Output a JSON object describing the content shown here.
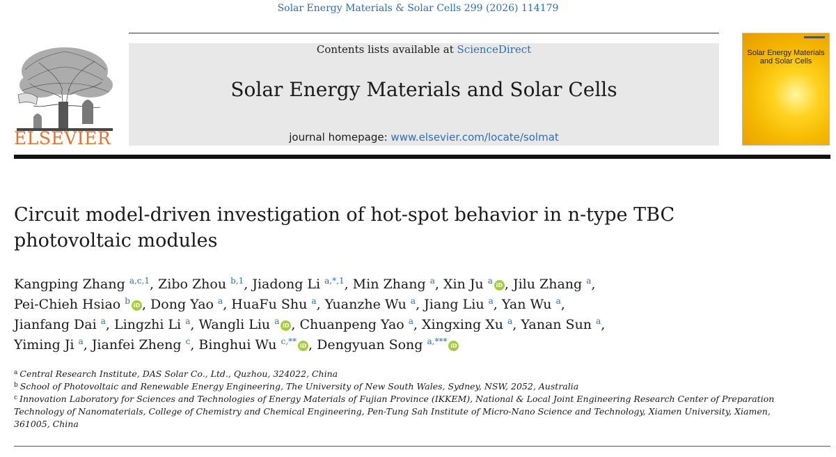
{
  "citation": "Solar Energy Materials & Solar Cells 299 (2026) 114179",
  "publisher": {
    "logo_text": "ELSEVIER"
  },
  "banner": {
    "contents_prefix": "Contents lists available at ",
    "contents_link": "ScienceDirect",
    "journal_name": "Solar Energy Materials and Solar Cells",
    "homepage_prefix": "journal homepage: ",
    "homepage_link": "www.elsevier.com/locate/solmat"
  },
  "cover": {
    "title": "Solar Energy Materials and Solar Cells"
  },
  "article": {
    "title_line1": "Circuit model-driven investigation of hot-spot behavior in n-type TBC",
    "title_line2": "photovoltaic modules"
  },
  "authors": [
    {
      "name": "Kangping Zhang",
      "sup": "a,c,1",
      "sep": ", ",
      "orcid": false
    },
    {
      "name": "Zibo Zhou",
      "sup": "b,1",
      "sep": ", ",
      "orcid": false
    },
    {
      "name": "Jiadong Li",
      "sup": "a,*,1",
      "sep": ", ",
      "orcid": false
    },
    {
      "name": "Min Zhang",
      "sup": "a",
      "sep": ", ",
      "orcid": false
    },
    {
      "name": "Xin Ju",
      "sup": "a",
      "sep": ", ",
      "orcid": true
    },
    {
      "name": "Jilu Zhang",
      "sup": "a",
      "sep": ",",
      "orcid": false
    },
    {
      "name": "Pei-Chieh Hsiao",
      "sup": "b",
      "sep": ", ",
      "orcid": true
    },
    {
      "name": "Dong Yao",
      "sup": "a",
      "sep": ", ",
      "orcid": false
    },
    {
      "name": "HuaFu Shu",
      "sup": "a",
      "sep": ", ",
      "orcid": false
    },
    {
      "name": "Yuanzhe Wu",
      "sup": "a",
      "sep": ", ",
      "orcid": false
    },
    {
      "name": "Jiang Liu",
      "sup": "a",
      "sep": ", ",
      "orcid": false
    },
    {
      "name": "Yan Wu",
      "sup": "a",
      "sep": ",",
      "orcid": false
    },
    {
      "name": "Jianfang Dai",
      "sup": "a",
      "sep": ", ",
      "orcid": false
    },
    {
      "name": "Lingzhi Li",
      "sup": "a",
      "sep": ", ",
      "orcid": false
    },
    {
      "name": "Wangli Liu",
      "sup": "a",
      "sep": ", ",
      "orcid": true
    },
    {
      "name": "Chuanpeng Yao",
      "sup": "a",
      "sep": ", ",
      "orcid": false
    },
    {
      "name": "Xingxing Xu",
      "sup": "a",
      "sep": ", ",
      "orcid": false
    },
    {
      "name": "Yanan Sun",
      "sup": "a",
      "sep": ",",
      "orcid": false
    },
    {
      "name": "Yiming Ji",
      "sup": "a",
      "sep": ", ",
      "orcid": false
    },
    {
      "name": "Jianfei Zheng",
      "sup": "c",
      "sep": ", ",
      "orcid": false
    },
    {
      "name": "Binghui Wu",
      "sup": "c,**",
      "sep": ", ",
      "orcid": true
    },
    {
      "name": "Dengyuan Song",
      "sup": "a,***",
      "sep": "",
      "orcid": true
    }
  ],
  "author_lines": [
    [
      0,
      6
    ],
    [
      6,
      12
    ],
    [
      12,
      18
    ],
    [
      18,
      22
    ]
  ],
  "orcid_label": "iD",
  "affiliations": [
    {
      "label": "a",
      "text": "Central Research Institute, DAS Solar Co., Ltd., Quzhou, 324022, China"
    },
    {
      "label": "b",
      "text": "School of Photovoltaic and Renewable Energy Engineering, The University of New South Wales, Sydney, NSW, 2052, Australia"
    },
    {
      "label": "c",
      "text": "Innovation Laboratory for Sciences and Technologies of Energy Materials of Fujian Province (IKKEM), National & Local Joint Engineering Research Center of Preparation Technology of Nanomaterials, College of Chemistry and Chemical Engineering, Pen-Tung Sah Institute of Micro-Nano Science and Technology, Xiamen University, Xiamen, 361005, China"
    }
  ],
  "colors": {
    "link": "#2a6ebb",
    "orcid": "#a6ce39",
    "elsevier": "#e8712a",
    "cover": "#f5b800"
  }
}
